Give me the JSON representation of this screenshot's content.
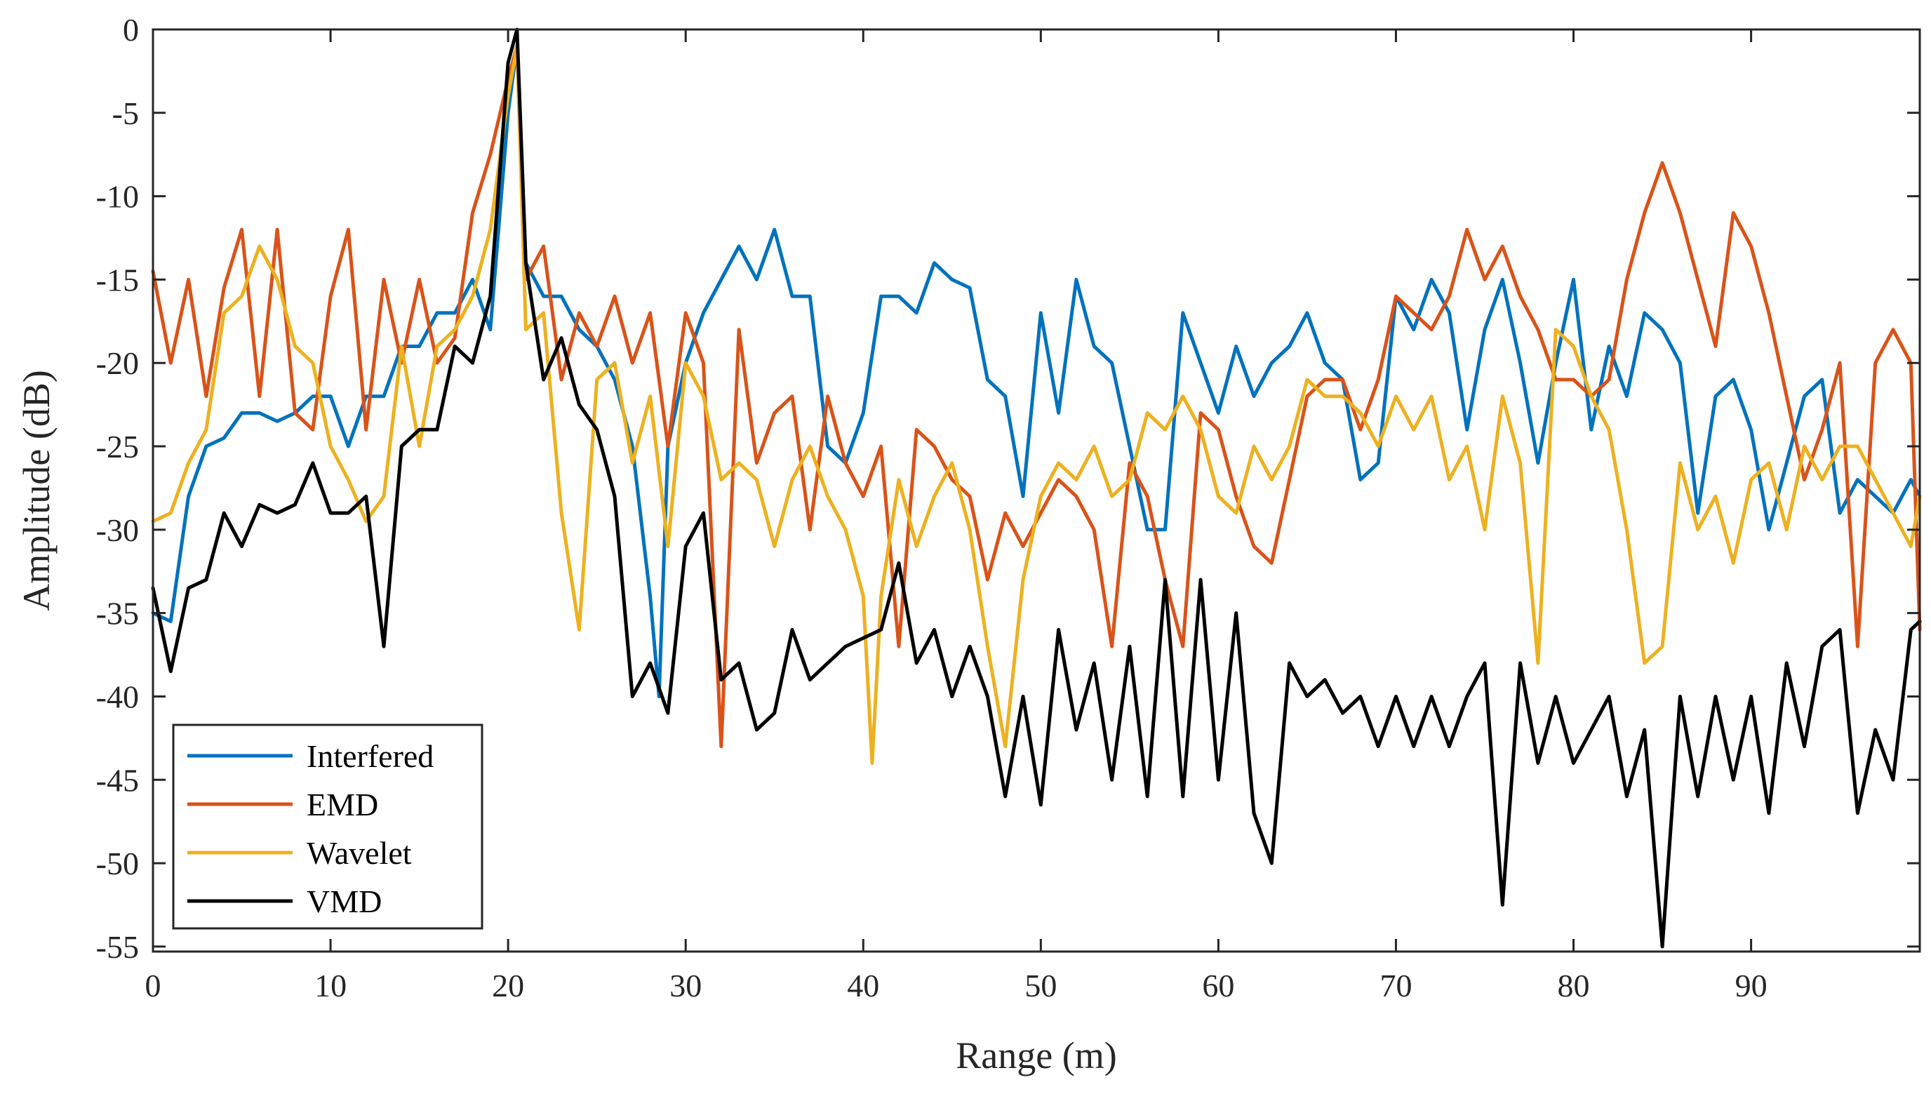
{
  "chart_data": {
    "type": "line",
    "title": "",
    "xlabel": "Range (m)",
    "ylabel": "Amplitude (dB)",
    "xlim": [
      0,
      99.5
    ],
    "ylim": [
      -55.3,
      0
    ],
    "xticks": [
      0,
      10,
      20,
      30,
      40,
      50,
      60,
      70,
      80,
      90
    ],
    "yticks": [
      0,
      -5,
      -10,
      -15,
      -20,
      -25,
      -30,
      -35,
      -40,
      -45,
      -50,
      -55
    ],
    "grid": false,
    "legend_position": "bottom-left",
    "series": [
      {
        "name": "Interfered",
        "color": "#0072BD",
        "x": [
          0,
          1,
          2,
          3,
          4,
          5,
          6,
          7,
          8,
          9,
          10,
          11,
          12,
          13,
          14,
          15,
          16,
          17,
          18,
          19,
          20,
          20.5,
          21,
          22,
          23,
          24,
          25,
          26,
          27,
          28,
          28.5,
          29,
          30,
          31,
          32,
          33,
          34,
          35,
          36,
          37,
          38,
          39,
          40,
          41,
          42,
          43,
          44,
          45,
          46,
          47,
          48,
          49,
          50,
          51,
          52,
          53,
          54,
          55,
          56,
          57,
          58,
          59,
          60,
          61,
          62,
          63,
          64,
          65,
          66,
          67,
          68,
          69,
          70,
          71,
          72,
          73,
          74,
          75,
          76,
          77,
          78,
          79,
          80,
          81,
          82,
          83,
          84,
          85,
          86,
          87,
          88,
          89,
          90,
          91,
          92,
          93,
          94,
          95,
          96,
          97,
          98,
          99,
          99.5
        ],
        "values": [
          -35,
          -35.5,
          -28,
          -25,
          -24.5,
          -23,
          -23,
          -23.5,
          -23,
          -22,
          -22,
          -25,
          -22,
          -22,
          -19,
          -19,
          -17,
          -17,
          -15,
          -18,
          -5,
          -1,
          -14,
          -16,
          -16,
          -18,
          -19,
          -21,
          -25,
          -34,
          -40,
          -25,
          -20,
          -17,
          -15,
          -13,
          -15,
          -12,
          -16,
          -16,
          -25,
          -26,
          -23,
          -16,
          -16,
          -17,
          -14,
          -15,
          -15.5,
          -21,
          -22,
          -28,
          -17,
          -23,
          -15,
          -19,
          -20,
          -25,
          -30,
          -30,
          -17,
          -20,
          -23,
          -19,
          -22,
          -20,
          -19,
          -17,
          -20,
          -21,
          -27,
          -26,
          -16,
          -18,
          -15,
          -17,
          -24,
          -18,
          -15,
          -20,
          -26,
          -20,
          -15,
          -24,
          -19,
          -22,
          -17,
          -18,
          -20,
          -29,
          -22,
          -21,
          -24,
          -30,
          -26,
          -22,
          -21,
          -29,
          -27,
          -28,
          -29,
          -27,
          -28
        ]
      },
      {
        "name": "EMD",
        "color": "#D95319",
        "x": [
          0,
          1,
          2,
          3,
          4,
          5,
          6,
          7,
          8,
          9,
          10,
          11,
          12,
          13,
          14,
          15,
          16,
          17,
          18,
          19,
          20,
          20.5,
          21,
          22,
          23,
          24,
          25,
          26,
          27,
          28,
          29,
          30,
          31,
          32,
          33,
          34,
          35,
          36,
          37,
          38,
          39,
          40,
          41,
          42,
          43,
          44,
          45,
          46,
          47,
          48,
          49,
          50,
          51,
          52,
          53,
          54,
          55,
          56,
          57,
          58,
          59,
          60,
          61,
          62,
          63,
          64,
          65,
          66,
          67,
          68,
          69,
          70,
          71,
          72,
          73,
          74,
          75,
          76,
          77,
          78,
          79,
          80,
          81,
          82,
          83,
          84,
          85,
          86,
          87,
          88,
          89,
          90,
          91,
          92,
          93,
          94,
          95,
          96,
          97,
          98,
          99,
          99.5
        ],
        "values": [
          -14.5,
          -20,
          -15,
          -22,
          -15.5,
          -12,
          -22,
          -12,
          -23,
          -24,
          -16,
          -12,
          -24,
          -15,
          -20,
          -15,
          -20,
          -18.5,
          -11,
          -7.5,
          -3,
          -1,
          -15,
          -13,
          -21,
          -17,
          -19,
          -16,
          -20,
          -17,
          -25,
          -17,
          -20,
          -43,
          -18,
          -26,
          -23,
          -22,
          -30,
          -22,
          -26,
          -28,
          -25,
          -37,
          -24,
          -25,
          -27,
          -28,
          -33,
          -29,
          -31,
          -29,
          -27,
          -28,
          -30,
          -37,
          -26,
          -28,
          -33,
          -37,
          -23,
          -24,
          -28,
          -31,
          -32,
          -27,
          -22,
          -21,
          -21,
          -24,
          -21,
          -16,
          -17,
          -18,
          -16,
          -12,
          -15,
          -13,
          -16,
          -18,
          -21,
          -21,
          -22,
          -21,
          -15,
          -11,
          -8,
          -11,
          -15,
          -19,
          -11,
          -13,
          -17,
          -22,
          -27,
          -24,
          -20,
          -37,
          -20,
          -18,
          -20,
          -36
        ]
      },
      {
        "name": "Wavelet",
        "color": "#EDB120",
        "x": [
          0,
          1,
          2,
          3,
          4,
          5,
          6,
          7,
          8,
          9,
          10,
          11,
          12,
          13,
          14,
          15,
          16,
          17,
          18,
          19,
          20,
          20.5,
          21,
          22,
          23,
          24,
          25,
          26,
          27,
          28,
          29,
          30,
          31,
          32,
          33,
          34,
          35,
          36,
          37,
          38,
          39,
          40,
          40.5,
          41,
          42,
          43,
          44,
          45,
          46,
          47,
          48,
          49,
          50,
          51,
          52,
          53,
          54,
          55,
          56,
          57,
          58,
          59,
          60,
          61,
          62,
          63,
          64,
          65,
          66,
          67,
          68,
          69,
          70,
          71,
          72,
          73,
          74,
          75,
          76,
          77,
          78,
          79,
          80,
          81,
          82,
          83,
          84,
          85,
          86,
          87,
          88,
          89,
          90,
          91,
          92,
          93,
          94,
          95,
          96,
          97,
          98,
          99,
          99.5
        ],
        "values": [
          -29.5,
          -29,
          -26,
          -24,
          -17,
          -16,
          -13,
          -15,
          -19,
          -20,
          -25,
          -27,
          -29.5,
          -28,
          -19,
          -25,
          -19,
          -18,
          -16,
          -12,
          -4,
          -1,
          -18,
          -17,
          -29,
          -36,
          -21,
          -20,
          -26,
          -22,
          -31,
          -20,
          -22,
          -27,
          -26,
          -27,
          -31,
          -27,
          -25,
          -28,
          -30,
          -34,
          -44,
          -34,
          -27,
          -31,
          -28,
          -26,
          -30,
          -37,
          -43,
          -33,
          -28,
          -26,
          -27,
          -25,
          -28,
          -27,
          -23,
          -24,
          -22,
          -24,
          -28,
          -29,
          -25,
          -27,
          -25,
          -21,
          -22,
          -22,
          -23,
          -25,
          -22,
          -24,
          -22,
          -27,
          -25,
          -30,
          -22,
          -26,
          -38,
          -18,
          -19,
          -22,
          -24,
          -30,
          -38,
          -37,
          -26,
          -30,
          -28,
          -32,
          -27,
          -26,
          -30,
          -25,
          -27,
          -25,
          -25,
          -27,
          -29,
          -31,
          -28
        ]
      },
      {
        "name": "VMD",
        "color": "#000000",
        "x": [
          0,
          1,
          2,
          3,
          4,
          5,
          6,
          7,
          8,
          9,
          10,
          11,
          12,
          13,
          14,
          15,
          16,
          17,
          18,
          19,
          20,
          20.5,
          21,
          22,
          23,
          24,
          25,
          26,
          27,
          28,
          29,
          30,
          31,
          32,
          33,
          34,
          35,
          36,
          37,
          38,
          39,
          40,
          41,
          42,
          43,
          44,
          45,
          46,
          47,
          48,
          49,
          50,
          51,
          52,
          53,
          54,
          55,
          56,
          57,
          58,
          59,
          60,
          61,
          62,
          63,
          64,
          65,
          66,
          67,
          68,
          69,
          70,
          71,
          72,
          73,
          74,
          75,
          76,
          77,
          78,
          79,
          80,
          81,
          82,
          83,
          84,
          85,
          86,
          87,
          88,
          89,
          90,
          91,
          92,
          93,
          94,
          95,
          96,
          97,
          98,
          99,
          99.5
        ],
        "values": [
          -33.5,
          -38.5,
          -33.5,
          -33,
          -29,
          -31,
          -28.5,
          -29,
          -28.5,
          -26,
          -29,
          -29,
          -28,
          -37,
          -25,
          -24,
          -24,
          -19,
          -20,
          -16,
          -2,
          0,
          -14,
          -21,
          -18.5,
          -22.5,
          -24,
          -28,
          -40,
          -38,
          -41,
          -31,
          -29,
          -39,
          -38,
          -42,
          -41,
          -36,
          -39,
          -38,
          -37,
          -36.5,
          -36,
          -32,
          -38,
          -36,
          -40,
          -37,
          -40,
          -46,
          -40,
          -46.5,
          -36,
          -42,
          -38,
          -45,
          -37,
          -46,
          -33,
          -46,
          -33,
          -45,
          -35,
          -47,
          -50,
          -38,
          -40,
          -39,
          -41,
          -40,
          -43,
          -40,
          -43,
          -40,
          -43,
          -40,
          -38,
          -52.5,
          -38,
          -44,
          -40,
          -44,
          -42,
          -40,
          -46,
          -42,
          -55,
          -40,
          -46,
          -40,
          -45,
          -40,
          -47,
          -38,
          -43,
          -37,
          -36,
          -47,
          -42,
          -45,
          -36,
          -35.5
        ]
      }
    ],
    "legend_entries": [
      "Interfered",
      "EMD",
      "Wavelet",
      "VMD"
    ]
  }
}
